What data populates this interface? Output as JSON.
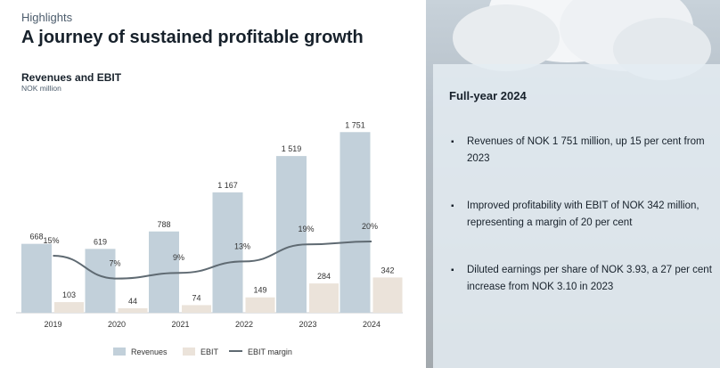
{
  "header": {
    "eyebrow": "Highlights",
    "title": "A journey of sustained profitable growth"
  },
  "chart_data": {
    "type": "bar",
    "title": "Revenues and EBIT",
    "subtitle": "NOK million",
    "categories": [
      "2019",
      "2020",
      "2021",
      "2022",
      "2023",
      "2024"
    ],
    "series": [
      {
        "name": "Revenues",
        "type": "bar",
        "values": [
          668,
          619,
          788,
          1167,
          1519,
          1751
        ],
        "labels": [
          "668",
          "619",
          "788",
          "1 167",
          "1 519",
          "1 751"
        ],
        "color": "#c2d0da"
      },
      {
        "name": "EBIT",
        "type": "bar",
        "values": [
          103,
          44,
          74,
          149,
          284,
          342
        ],
        "labels": [
          "103",
          "44",
          "74",
          "149",
          "284",
          "342"
        ],
        "color": "#ebe3da"
      },
      {
        "name": "EBIT margin",
        "type": "line",
        "values": [
          15,
          7,
          9,
          13,
          19,
          20
        ],
        "labels": [
          "15%",
          "7%",
          "9%",
          "13%",
          "19%",
          "20%"
        ],
        "color": "#5f6a72"
      }
    ],
    "ylim": [
      0,
      1900
    ],
    "grid": false,
    "legend": "bottom"
  },
  "panel": {
    "title": "Full-year 2024",
    "bullets": [
      "Revenues of NOK 1 751 million, up 15 per cent from 2023",
      "Improved profitability with EBIT of NOK 342 million, representing a margin of 20 per cent",
      "Diluted earnings per share of NOK 3.93, a 27 per cent increase from NOK 3.10 in 2023"
    ]
  }
}
